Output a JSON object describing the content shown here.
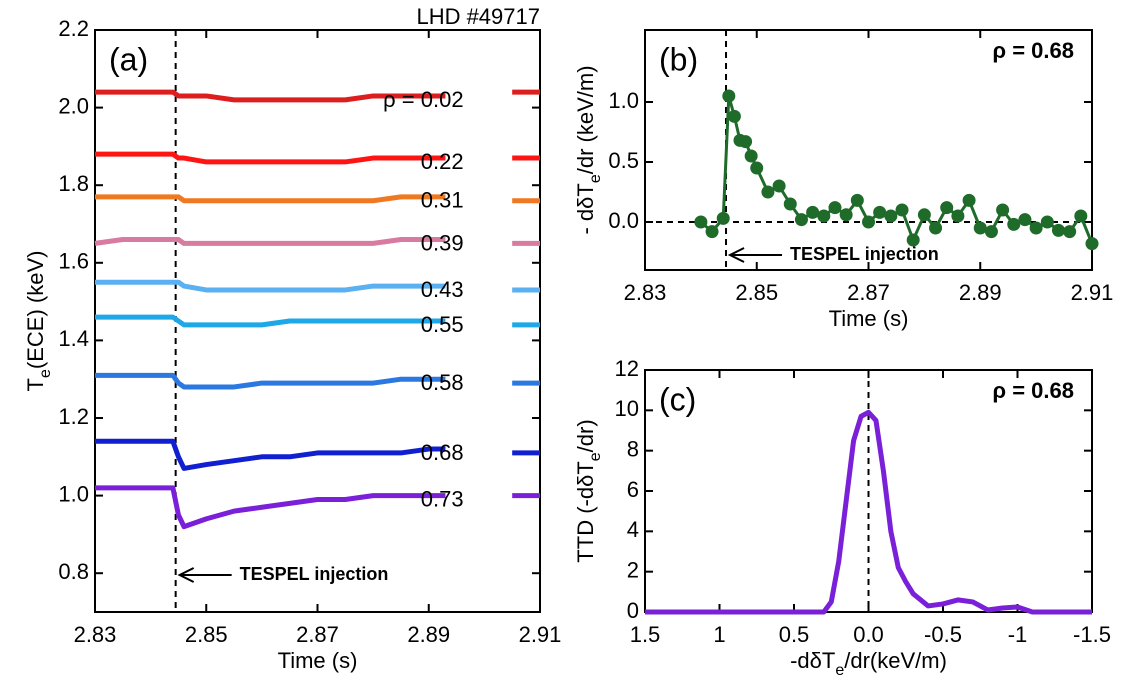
{
  "chart_data": [
    {
      "type": "line",
      "panel_label": "(a)",
      "note": "LHD #49717",
      "annotation": "TESPEL injection",
      "xlabel": "Time (s)",
      "ylabel": [
        "T",
        "e",
        "(ECE) (keV)"
      ],
      "xlim": [
        2.83,
        2.91
      ],
      "ylim": [
        0.7,
        2.2
      ],
      "xticks": [
        2.83,
        2.85,
        2.87,
        2.89,
        2.91
      ],
      "yticks": [
        {
          "value": 0.8,
          "label": "0.8"
        },
        {
          "value": 1,
          "label": "1.0"
        },
        {
          "value": 1.2,
          "label": "1.2"
        },
        {
          "value": 1.4,
          "label": "1.4"
        },
        {
          "value": 1.6,
          "label": "1.6"
        },
        {
          "value": 1.8,
          "label": "1.8"
        },
        {
          "value": 2,
          "label": "2.0"
        },
        {
          "value": 2.2,
          "label": "2.2"
        }
      ],
      "vline": 2.8445,
      "x": [
        2.83,
        2.835,
        2.84,
        2.844,
        2.845,
        2.846,
        2.85,
        2.855,
        2.86,
        2.865,
        2.87,
        2.875,
        2.88,
        2.885,
        2.89,
        2.893,
        2.895,
        2.9,
        2.905,
        2.91
      ],
      "series": [
        {
          "name": "ρ = 0.02",
          "color": "#dd1e1e",
          "values": [
            2.04,
            2.04,
            2.04,
            2.04,
            2.03,
            2.03,
            2.03,
            2.02,
            2.02,
            2.02,
            2.02,
            2.02,
            2.03,
            2.03,
            2.03,
            2.03,
            null,
            null,
            2.04,
            2.04
          ]
        },
        {
          "name": "0.22",
          "color": "#ff1414",
          "values": [
            1.88,
            1.88,
            1.88,
            1.88,
            1.87,
            1.87,
            1.86,
            1.86,
            1.86,
            1.86,
            1.86,
            1.86,
            1.87,
            1.87,
            1.87,
            1.87,
            null,
            null,
            1.87,
            1.87
          ]
        },
        {
          "name": "0.31",
          "color": "#f07820",
          "values": [
            1.77,
            1.77,
            1.77,
            1.77,
            1.77,
            1.76,
            1.76,
            1.76,
            1.76,
            1.76,
            1.76,
            1.76,
            1.76,
            1.77,
            1.77,
            1.77,
            null,
            null,
            1.76,
            1.76
          ]
        },
        {
          "name": "0.39",
          "color": "#d97aa0",
          "values": [
            1.65,
            1.66,
            1.66,
            1.66,
            1.66,
            1.65,
            1.65,
            1.65,
            1.65,
            1.65,
            1.65,
            1.65,
            1.65,
            1.66,
            1.66,
            1.66,
            null,
            null,
            1.65,
            1.65
          ]
        },
        {
          "name": "0.43",
          "color": "#5ab0f0",
          "values": [
            1.55,
            1.55,
            1.55,
            1.55,
            1.55,
            1.54,
            1.53,
            1.53,
            1.53,
            1.53,
            1.53,
            1.53,
            1.54,
            1.54,
            1.54,
            1.54,
            null,
            null,
            1.53,
            1.53
          ]
        },
        {
          "name": "0.55",
          "color": "#1ea8e8",
          "values": [
            1.46,
            1.46,
            1.46,
            1.46,
            1.45,
            1.44,
            1.44,
            1.44,
            1.44,
            1.45,
            1.45,
            1.45,
            1.45,
            1.45,
            1.45,
            1.45,
            null,
            null,
            1.44,
            1.44
          ]
        },
        {
          "name": "0.58",
          "color": "#2a78e0",
          "values": [
            1.31,
            1.31,
            1.31,
            1.31,
            1.29,
            1.28,
            1.28,
            1.28,
            1.29,
            1.29,
            1.29,
            1.29,
            1.29,
            1.3,
            1.3,
            1.3,
            null,
            null,
            1.29,
            1.29
          ]
        },
        {
          "name": "0.68",
          "color": "#1020d0",
          "values": [
            1.14,
            1.14,
            1.14,
            1.14,
            1.1,
            1.07,
            1.08,
            1.09,
            1.1,
            1.1,
            1.11,
            1.11,
            1.11,
            1.11,
            1.12,
            1.12,
            null,
            null,
            1.11,
            1.11
          ]
        },
        {
          "name": "0.73",
          "color": "#7a20d8",
          "values": [
            1.02,
            1.02,
            1.02,
            1.02,
            0.95,
            0.92,
            0.94,
            0.96,
            0.97,
            0.98,
            0.99,
            0.99,
            1.0,
            1.0,
            1.0,
            1.0,
            null,
            null,
            1.0,
            1.0
          ]
        }
      ]
    },
    {
      "type": "line",
      "markers": true,
      "panel_label": "(b)",
      "note": "ρ = 0.68",
      "annotation": "TESPEL injection",
      "xlabel": "Time (s)",
      "ylabel": [
        "- dδT",
        "e",
        "/dr (keV/m)"
      ],
      "xlim": [
        2.83,
        2.91
      ],
      "ylim": [
        -0.4,
        1.6
      ],
      "xticks": [
        2.83,
        2.85,
        2.87,
        2.89,
        2.91
      ],
      "yticks": [
        {
          "value": 0,
          "label": "0.0"
        },
        0.5,
        {
          "value": 1,
          "label": "1.0"
        }
      ],
      "vline": 2.8445,
      "hline": 0,
      "x": [
        2.84,
        2.842,
        2.844,
        2.845,
        2.846,
        2.847,
        2.848,
        2.849,
        2.85,
        2.852,
        2.854,
        2.856,
        2.858,
        2.86,
        2.862,
        2.864,
        2.866,
        2.868,
        2.87,
        2.872,
        2.874,
        2.876,
        2.878,
        2.88,
        2.882,
        2.884,
        2.886,
        2.888,
        2.89,
        2.892,
        2.894,
        2.896,
        2.898,
        2.9,
        2.902,
        2.904,
        2.906,
        2.908,
        2.91
      ],
      "series": [
        {
          "color": "#1e6b2a",
          "values": [
            0.0,
            -0.08,
            0.03,
            1.05,
            0.88,
            0.68,
            0.67,
            0.55,
            0.45,
            0.25,
            0.3,
            0.15,
            0.02,
            0.08,
            0.05,
            0.12,
            0.06,
            0.18,
            0.0,
            0.08,
            0.05,
            0.1,
            -0.15,
            0.06,
            -0.05,
            0.12,
            0.05,
            0.18,
            -0.05,
            -0.08,
            0.1,
            -0.02,
            0.02,
            -0.05,
            0.0,
            -0.07,
            -0.08,
            0.05,
            -0.18
          ]
        }
      ]
    },
    {
      "type": "line",
      "panel_label": "(c)",
      "note": "ρ = 0.68",
      "xlabel": [
        "-dδT",
        "e",
        "/dr(keV/m)"
      ],
      "ylabel": [
        "TTD (-dδT",
        "e",
        "/dr)"
      ],
      "xlim": [
        1.5,
        -1.5
      ],
      "ylim": [
        0,
        12
      ],
      "xticks": [
        1.5,
        1,
        0.5,
        {
          "value": 0,
          "label": "0.0"
        },
        -0.5,
        -1,
        -1.5
      ],
      "yticks": [
        0,
        2,
        4,
        6,
        8,
        10,
        12
      ],
      "vline": 0,
      "x": [
        1.5,
        0.3,
        0.25,
        0.2,
        0.15,
        0.1,
        0.05,
        0,
        -0.05,
        -0.1,
        -0.15,
        -0.2,
        -0.25,
        -0.3,
        -0.4,
        -0.5,
        -0.6,
        -0.7,
        -0.8,
        -0.9,
        -1.0,
        -1.1,
        -1.2,
        -1.5
      ],
      "series": [
        {
          "color": "#7a20d8",
          "values": [
            0,
            0,
            0.5,
            2.5,
            5.5,
            8.5,
            9.7,
            9.9,
            9.5,
            7,
            4,
            2.2,
            1.5,
            0.9,
            0.3,
            0.4,
            0.6,
            0.5,
            0.1,
            0.2,
            0.25,
            0,
            0,
            0
          ]
        }
      ]
    }
  ]
}
